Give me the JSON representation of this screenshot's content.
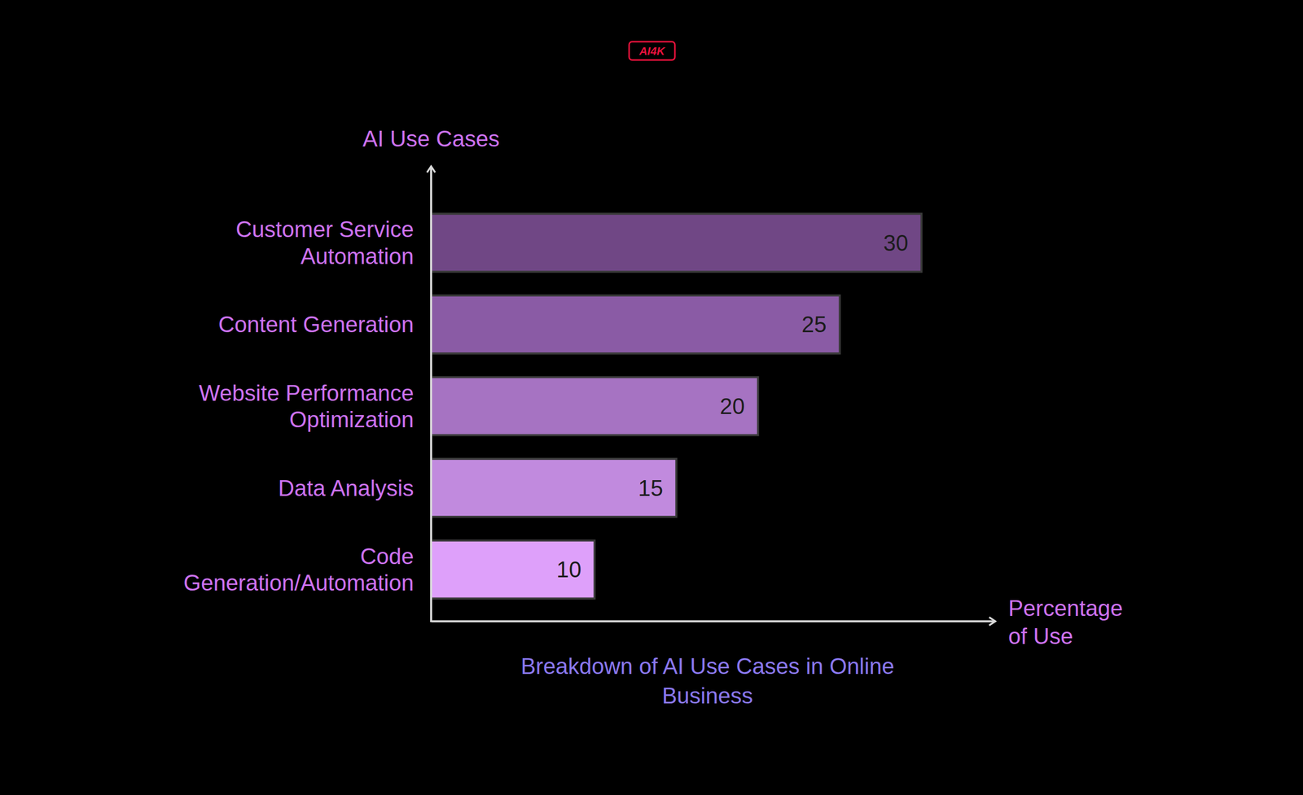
{
  "chart_data": {
    "type": "bar",
    "orientation": "horizontal",
    "title": "Breakdown of AI Use Cases in Online Business",
    "y_label": "AI Use Cases",
    "x_label": "Percentage of Use",
    "annotations": [
      "AI4K"
    ],
    "categories": [
      "Customer Service Automation",
      "Content Generation",
      "Website Performance Optimization",
      "Data Analysis",
      "Code Generation/Automation"
    ],
    "values": [
      30,
      25,
      20,
      15,
      10
    ],
    "colors": [
      "#704785",
      "#8a5ba5",
      "#a673c2",
      "#c18ade",
      "#dea0fa"
    ],
    "xlim": [
      0,
      34.5
    ],
    "xticks": [],
    "data_labels": true,
    "tick_labels": "y",
    "grid": false
  }
}
